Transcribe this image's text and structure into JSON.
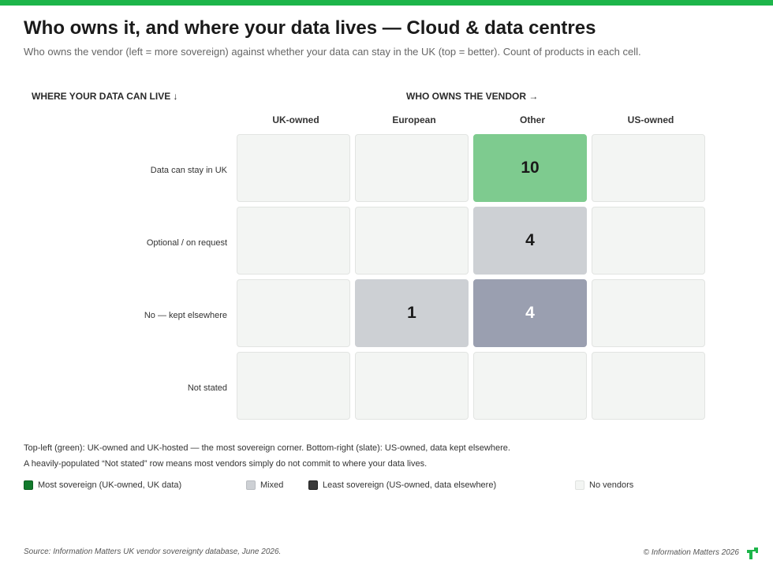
{
  "title": "Who owns it, and where your data lives — Cloud & data centres",
  "subtitle": "Who owns the vendor (left = more sovereign) against whether your data can stay in the UK (top = better). Count of products in each cell.",
  "colors": {
    "accent": "#1db54a",
    "most_sovereign": "#127a2c",
    "mixed": "#cdd0d4",
    "least_sovereign": "#3a3a3a",
    "no_vendors": "#f3f5f3"
  },
  "chart_data": {
    "type": "heatmap",
    "y_axis_label": "WHERE YOUR DATA CAN LIVE ↓",
    "x_axis_label": "WHO OWNS THE VENDOR →",
    "columns": [
      "UK-owned",
      "European",
      "Other",
      "US-owned"
    ],
    "rows": [
      "Data can stay in UK",
      "Optional / on request",
      "No — kept elsewhere",
      "Not stated"
    ],
    "values": [
      [
        null,
        null,
        10,
        null
      ],
      [
        null,
        null,
        4,
        null
      ],
      [
        null,
        1,
        4,
        null
      ],
      [
        null,
        null,
        null,
        null
      ]
    ],
    "cell_colors": [
      [
        null,
        null,
        "#7ecb8f",
        null
      ],
      [
        null,
        null,
        "#cdd0d4",
        null
      ],
      [
        null,
        "#cdd0d4",
        "#9a9fb0",
        null
      ],
      [
        null,
        null,
        null,
        null
      ]
    ],
    "cell_text_colors": [
      [
        null,
        null,
        "#1a1a1a",
        null
      ],
      [
        null,
        null,
        "#1a1a1a",
        null
      ],
      [
        null,
        "#1a1a1a",
        "#ffffff",
        null
      ],
      [
        null,
        null,
        null,
        null
      ]
    ]
  },
  "notes": [
    "Top-left (green): UK-owned and UK-hosted — the most sovereign corner. Bottom-right (slate): US-owned, data kept elsewhere.",
    "A heavily-populated “Not stated” row means most vendors simply do not commit to where your data lives."
  ],
  "legend": [
    {
      "label": "Most sovereign (UK-owned, UK data)",
      "color": "#127a2c"
    },
    {
      "label": "Mixed",
      "color": "#cdd0d4"
    },
    {
      "label": "Least sovereign (US-owned, data elsewhere)",
      "color": "#3a3a3a"
    },
    {
      "label": "No vendors",
      "color": "#f3f5f3"
    }
  ],
  "footer": {
    "source": "Source: Information Matters UK vendor sovereignty database, June 2026.",
    "copyright": "© Information Matters 2026"
  }
}
